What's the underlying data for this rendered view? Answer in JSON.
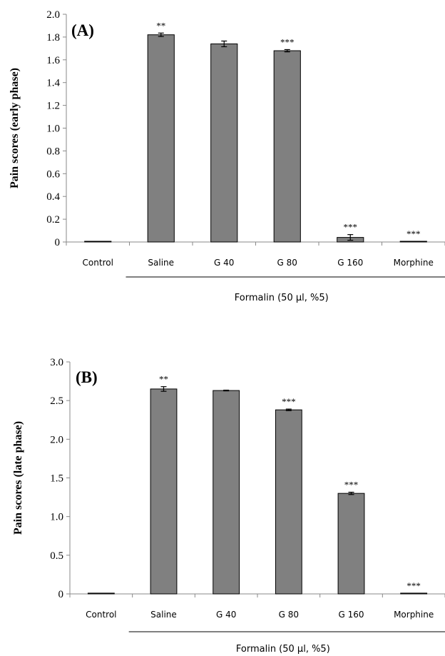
{
  "chart_data": [
    {
      "type": "bar",
      "panel_label": "(A)",
      "ylabel": "Pain scores (early phase)",
      "ylim": [
        0,
        2.0
      ],
      "yticks": [
        "0",
        "0.2",
        "0.4",
        "0.6",
        "0.8",
        "1.0",
        "1.2",
        "1.4",
        "1.6",
        "1.8",
        "2.0"
      ],
      "yticks_values": [
        0,
        0.2,
        0.4,
        0.6,
        0.8,
        1.0,
        1.2,
        1.4,
        1.6,
        1.8,
        2.0
      ],
      "categories": [
        "Control",
        "Saline",
        "G 40",
        "G 80",
        "G 160",
        "Morphine"
      ],
      "values": [
        0.005,
        1.82,
        1.74,
        1.68,
        0.04,
        0.005
      ],
      "errors": [
        0,
        0.015,
        0.025,
        0.01,
        0.025,
        0
      ],
      "significance": [
        "",
        "**",
        "",
        "***",
        "***",
        "***"
      ],
      "group_label": "Formalin (50 µl, %5)",
      "bar_color": "#808080"
    },
    {
      "type": "bar",
      "panel_label": "(B)",
      "ylabel": "Pain scores (late phase)",
      "ylim": [
        0,
        3.0
      ],
      "yticks": [
        "0",
        "0.5",
        "1.0",
        "1.5",
        "2.0",
        "2.5",
        "3.0"
      ],
      "yticks_values": [
        0,
        0.5,
        1.0,
        1.5,
        2.0,
        2.5,
        3.0
      ],
      "categories": [
        "Control",
        "Saline",
        "G 40",
        "G 80",
        "G 160",
        "Morphine"
      ],
      "values": [
        0.01,
        2.65,
        2.63,
        2.38,
        1.3,
        0.01
      ],
      "errors": [
        0,
        0.03,
        0.005,
        0.01,
        0.015,
        0
      ],
      "significance": [
        "",
        "**",
        "",
        "***",
        "***",
        "***"
      ],
      "group_label": "Formalin (50 µl, %5)",
      "bar_color": "#808080"
    }
  ]
}
